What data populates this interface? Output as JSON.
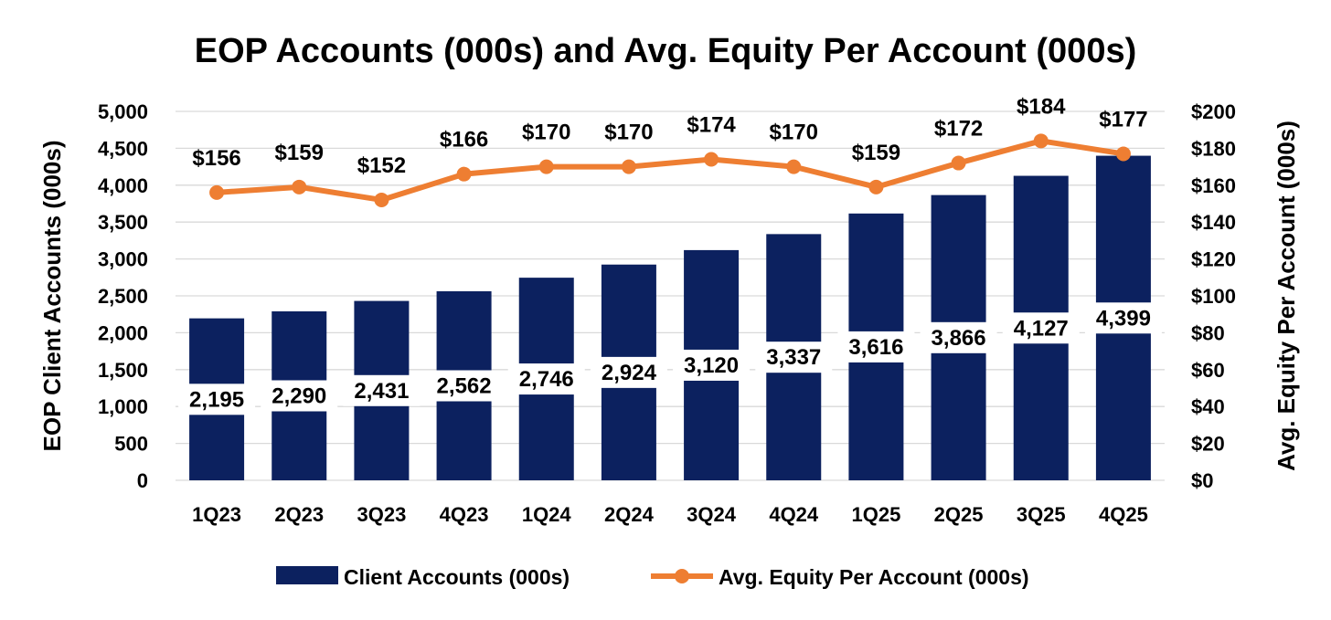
{
  "chart_data": {
    "type": "bar",
    "title": "EOP Accounts (000s) and Avg. Equity Per Account (000s)",
    "categories": [
      "1Q23",
      "2Q23",
      "3Q23",
      "4Q23",
      "1Q24",
      "2Q24",
      "3Q24",
      "4Q24",
      "1Q25",
      "2Q25",
      "3Q25",
      "4Q25"
    ],
    "series": [
      {
        "name": "Client Accounts (000s)",
        "type": "bar",
        "axis": "left",
        "color": "#0c215f",
        "values": [
          2195,
          2290,
          2431,
          2562,
          2746,
          2924,
          3120,
          3337,
          3616,
          3866,
          4127,
          4399
        ],
        "labels": [
          "2,195",
          "2,290",
          "2,431",
          "2,562",
          "2,746",
          "2,924",
          "3,120",
          "3,337",
          "3,616",
          "3,866",
          "4,127",
          "4,399"
        ]
      },
      {
        "name": "Avg. Equity Per Account (000s)",
        "type": "line",
        "axis": "right",
        "color": "#ee7e32",
        "values": [
          156,
          159,
          152,
          166,
          170,
          170,
          174,
          170,
          159,
          172,
          184,
          177
        ],
        "labels": [
          "$156",
          "$159",
          "$152",
          "$166",
          "$170",
          "$170",
          "$174",
          "$170",
          "$159",
          "$172",
          "$184",
          "$177"
        ]
      }
    ],
    "left_axis": {
      "label": "EOP Client Accounts (000s)",
      "range": [
        0,
        5000
      ],
      "ticks": [
        "0",
        "500",
        "1,000",
        "1,500",
        "2,000",
        "2,500",
        "3,000",
        "3,500",
        "4,000",
        "4,500",
        "5,000"
      ]
    },
    "right_axis": {
      "label": "Avg. Equity Per Account (000s)",
      "range": [
        0,
        200
      ],
      "ticks": [
        "$0",
        "$20",
        "$40",
        "$60",
        "$80",
        "$100",
        "$120",
        "$140",
        "$160",
        "$180",
        "$200"
      ]
    },
    "grid": true,
    "legend_position": "bottom"
  }
}
